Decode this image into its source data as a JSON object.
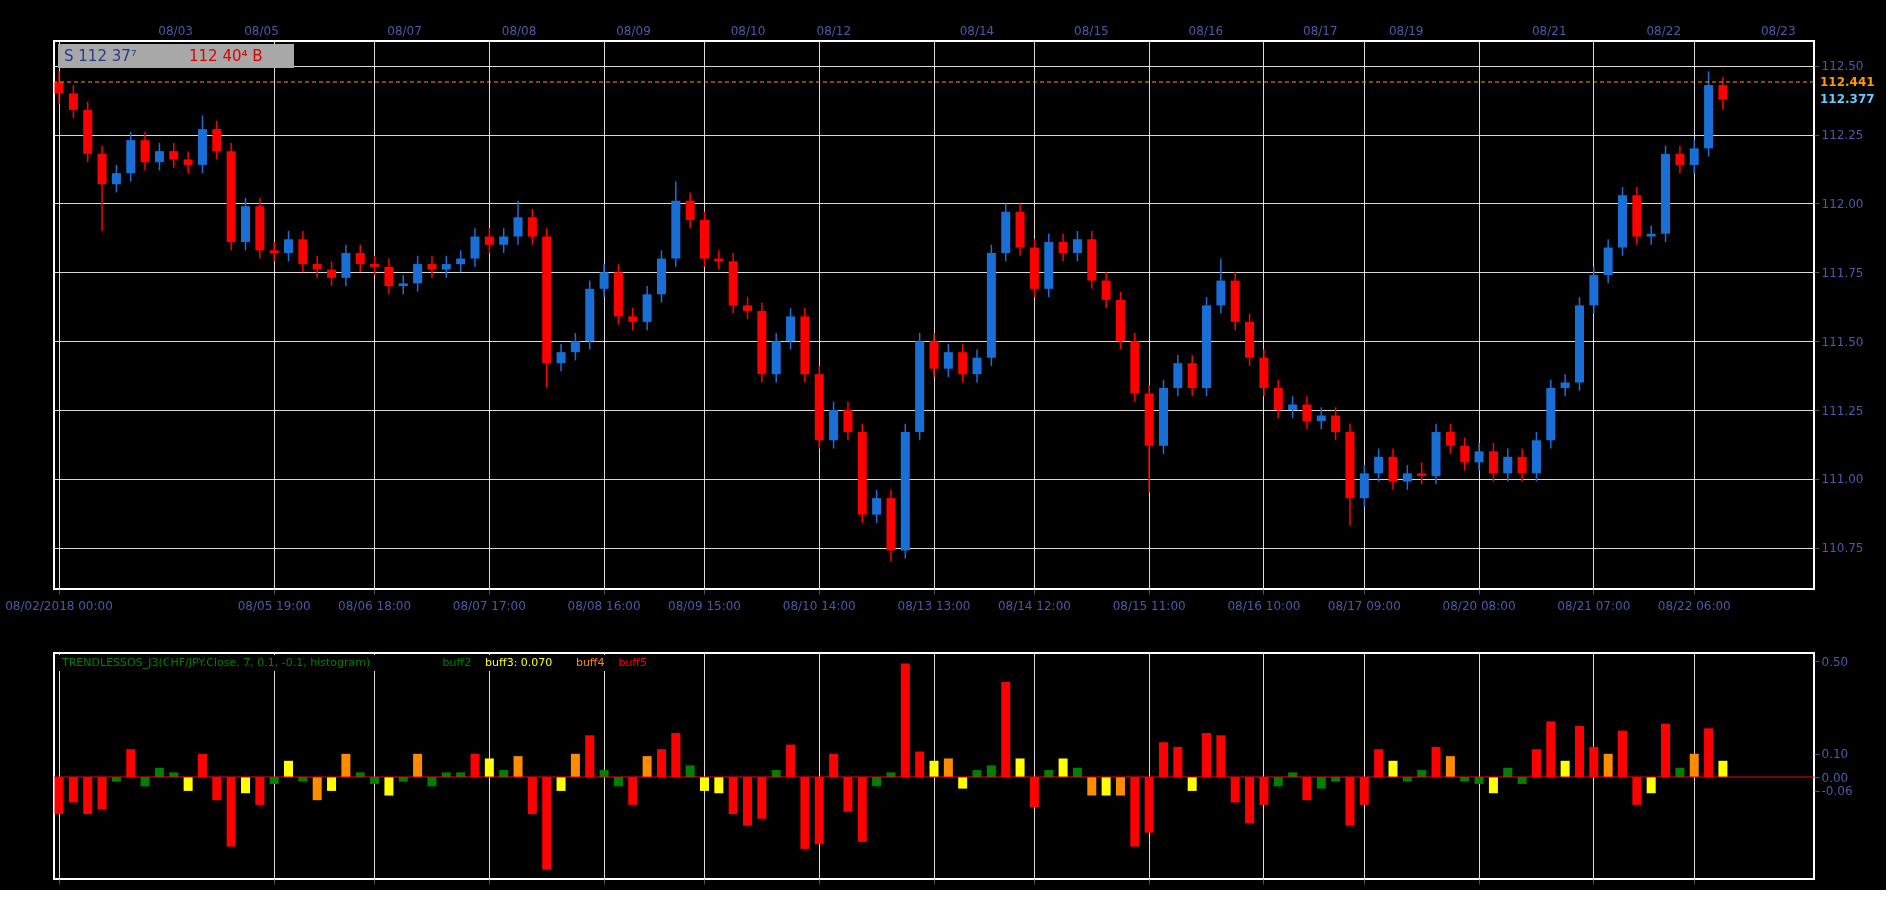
{
  "chart_data": [
    {
      "type": "candlestick",
      "categories": [
        "08/02/2018 00:00",
        null,
        null,
        null,
        null,
        null,
        null,
        null,
        null,
        null,
        null,
        null,
        null,
        null,
        null,
        "08/05 19:00",
        null,
        null,
        null,
        null,
        null,
        null,
        "08/06 18:00",
        null,
        null,
        null,
        null,
        null,
        null,
        null,
        "08/07 17:00",
        null,
        null,
        null,
        null,
        null,
        null,
        null,
        "08/08 16:00",
        null,
        null,
        null,
        null,
        null,
        null,
        "08/09 15:00",
        null,
        null,
        null,
        null,
        null,
        null,
        null,
        "08/10 14:00",
        null,
        null,
        null,
        null,
        null,
        null,
        null,
        "08/13 13:00",
        null,
        null,
        null,
        null,
        null,
        null,
        "08/14 12:00",
        null,
        null,
        null,
        null,
        null,
        null,
        null,
        "08/15 11:00",
        null,
        null,
        null,
        null,
        null,
        null,
        null,
        "08/16 10:00",
        null,
        null,
        null,
        null,
        null,
        null,
        "08/17 09:00",
        null,
        null,
        null,
        null,
        null,
        null,
        null,
        "08/20 08:00",
        null,
        null,
        null,
        null,
        null,
        null,
        null,
        "08/21 07:00",
        null,
        null,
        null,
        null,
        null,
        null,
        "08/22 06:00",
        null,
        null,
        null,
        null,
        null,
        null,
        null,
        null
      ],
      "ohlc": [
        [
          112.44,
          112.48,
          112.36,
          112.4
        ],
        [
          112.4,
          112.43,
          112.31,
          112.34
        ],
        [
          112.34,
          112.37,
          112.15,
          112.18
        ],
        [
          112.18,
          112.21,
          111.9,
          112.07
        ],
        [
          112.07,
          112.14,
          112.04,
          112.11
        ],
        [
          112.11,
          112.26,
          112.08,
          112.23
        ],
        [
          112.23,
          112.26,
          112.12,
          112.15
        ],
        [
          112.15,
          112.22,
          112.12,
          112.19
        ],
        [
          112.19,
          112.22,
          112.13,
          112.16
        ],
        [
          112.16,
          112.19,
          112.11,
          112.14
        ],
        [
          112.14,
          112.32,
          112.11,
          112.27
        ],
        [
          112.27,
          112.3,
          112.16,
          112.19
        ],
        [
          112.19,
          112.22,
          111.83,
          111.86
        ],
        [
          111.86,
          112.02,
          111.83,
          111.99
        ],
        [
          111.99,
          112.02,
          111.8,
          111.83
        ],
        [
          111.83,
          111.86,
          111.79,
          111.82
        ],
        [
          111.82,
          111.9,
          111.79,
          111.87
        ],
        [
          111.87,
          111.9,
          111.75,
          111.78
        ],
        [
          111.78,
          111.81,
          111.73,
          111.76
        ],
        [
          111.76,
          111.79,
          111.7,
          111.73
        ],
        [
          111.73,
          111.85,
          111.7,
          111.82
        ],
        [
          111.82,
          111.85,
          111.75,
          111.78
        ],
        [
          111.78,
          111.81,
          111.74,
          111.77
        ],
        [
          111.77,
          111.8,
          111.67,
          111.7
        ],
        [
          111.7,
          111.74,
          111.67,
          111.71
        ],
        [
          111.71,
          111.81,
          111.68,
          111.78
        ],
        [
          111.78,
          111.81,
          111.73,
          111.76
        ],
        [
          111.76,
          111.81,
          111.73,
          111.78
        ],
        [
          111.78,
          111.83,
          111.75,
          111.8
        ],
        [
          111.8,
          111.91,
          111.77,
          111.88
        ],
        [
          111.88,
          111.91,
          111.82,
          111.85
        ],
        [
          111.85,
          111.91,
          111.82,
          111.88
        ],
        [
          111.88,
          112.01,
          111.85,
          111.95
        ],
        [
          111.95,
          111.98,
          111.85,
          111.88
        ],
        [
          111.88,
          111.91,
          111.33,
          111.42
        ],
        [
          111.42,
          111.49,
          111.39,
          111.46
        ],
        [
          111.46,
          111.53,
          111.43,
          111.5
        ],
        [
          111.5,
          111.72,
          111.47,
          111.69
        ],
        [
          111.69,
          111.78,
          111.66,
          111.75
        ],
        [
          111.75,
          111.78,
          111.56,
          111.59
        ],
        [
          111.59,
          111.62,
          111.54,
          111.57
        ],
        [
          111.57,
          111.7,
          111.54,
          111.67
        ],
        [
          111.67,
          111.83,
          111.64,
          111.8
        ],
        [
          111.8,
          112.08,
          111.77,
          112.01
        ],
        [
          112.01,
          112.04,
          111.91,
          111.94
        ],
        [
          111.94,
          111.97,
          111.77,
          111.8
        ],
        [
          111.8,
          111.83,
          111.76,
          111.79
        ],
        [
          111.79,
          111.82,
          111.6,
          111.63
        ],
        [
          111.63,
          111.66,
          111.58,
          111.61
        ],
        [
          111.61,
          111.64,
          111.35,
          111.38
        ],
        [
          111.38,
          111.53,
          111.35,
          111.5
        ],
        [
          111.5,
          111.62,
          111.47,
          111.59
        ],
        [
          111.59,
          111.62,
          111.35,
          111.38
        ],
        [
          111.38,
          111.41,
          111.11,
          111.14
        ],
        [
          111.14,
          111.28,
          111.11,
          111.25
        ],
        [
          111.25,
          111.28,
          111.14,
          111.17
        ],
        [
          111.17,
          111.2,
          110.84,
          110.87
        ],
        [
          110.87,
          110.96,
          110.84,
          110.93
        ],
        [
          110.93,
          110.96,
          110.7,
          110.74
        ],
        [
          110.74,
          111.2,
          110.71,
          111.17
        ],
        [
          111.17,
          111.53,
          111.14,
          111.5
        ],
        [
          111.5,
          111.53,
          111.37,
          111.4
        ],
        [
          111.4,
          111.49,
          111.37,
          111.46
        ],
        [
          111.46,
          111.49,
          111.35,
          111.38
        ],
        [
          111.38,
          111.47,
          111.35,
          111.44
        ],
        [
          111.44,
          111.85,
          111.41,
          111.82
        ],
        [
          111.82,
          112.0,
          111.79,
          111.97
        ],
        [
          111.97,
          112.0,
          111.81,
          111.84
        ],
        [
          111.84,
          111.87,
          111.66,
          111.69
        ],
        [
          111.69,
          111.89,
          111.66,
          111.86
        ],
        [
          111.86,
          111.89,
          111.79,
          111.82
        ],
        [
          111.82,
          111.9,
          111.79,
          111.87
        ],
        [
          111.87,
          111.9,
          111.69,
          111.72
        ],
        [
          111.72,
          111.75,
          111.62,
          111.65
        ],
        [
          111.65,
          111.68,
          111.47,
          111.5
        ],
        [
          111.5,
          111.53,
          111.28,
          111.31
        ],
        [
          111.31,
          111.34,
          110.95,
          111.12
        ],
        [
          111.12,
          111.36,
          111.09,
          111.33
        ],
        [
          111.33,
          111.45,
          111.3,
          111.42
        ],
        [
          111.42,
          111.45,
          111.3,
          111.33
        ],
        [
          111.33,
          111.66,
          111.3,
          111.63
        ],
        [
          111.63,
          111.8,
          111.6,
          111.72
        ],
        [
          111.72,
          111.75,
          111.54,
          111.57
        ],
        [
          111.57,
          111.6,
          111.41,
          111.44
        ],
        [
          111.44,
          111.47,
          111.3,
          111.33
        ],
        [
          111.33,
          111.36,
          111.22,
          111.25
        ],
        [
          111.25,
          111.3,
          111.22,
          111.27
        ],
        [
          111.27,
          111.3,
          111.18,
          111.21
        ],
        [
          111.21,
          111.26,
          111.18,
          111.23
        ],
        [
          111.23,
          111.26,
          111.14,
          111.17
        ],
        [
          111.17,
          111.2,
          110.83,
          110.93
        ],
        [
          110.93,
          111.05,
          110.9,
          111.02
        ],
        [
          111.02,
          111.11,
          110.99,
          111.08
        ],
        [
          111.08,
          111.11,
          110.96,
          110.99
        ],
        [
          110.99,
          111.05,
          110.96,
          111.02
        ],
        [
          111.02,
          111.06,
          110.98,
          111.01
        ],
        [
          111.01,
          111.2,
          110.98,
          111.17
        ],
        [
          111.17,
          111.2,
          111.09,
          111.12
        ],
        [
          111.12,
          111.15,
          111.03,
          111.06
        ],
        [
          111.06,
          111.13,
          111.03,
          111.1
        ],
        [
          111.1,
          111.13,
          110.99,
          111.02
        ],
        [
          111.02,
          111.11,
          110.99,
          111.08
        ],
        [
          111.08,
          111.11,
          110.99,
          111.02
        ],
        [
          111.02,
          111.17,
          110.99,
          111.14
        ],
        [
          111.14,
          111.36,
          111.11,
          111.33
        ],
        [
          111.33,
          111.38,
          111.3,
          111.35
        ],
        [
          111.35,
          111.66,
          111.32,
          111.63
        ],
        [
          111.63,
          111.77,
          111.6,
          111.74
        ],
        [
          111.74,
          111.87,
          111.71,
          111.84
        ],
        [
          111.84,
          112.06,
          111.81,
          112.03
        ],
        [
          112.03,
          112.06,
          111.85,
          111.88
        ],
        [
          111.88,
          111.92,
          111.85,
          111.89
        ],
        [
          111.89,
          112.21,
          111.86,
          112.18
        ],
        [
          112.18,
          112.21,
          112.11,
          112.14
        ],
        [
          112.14,
          112.23,
          112.11,
          112.2
        ],
        [
          112.2,
          112.48,
          112.17,
          112.43
        ],
        [
          112.43,
          112.46,
          112.34,
          112.377
        ],
        null,
        null,
        null,
        null,
        null,
        null
      ],
      "colors": [
        "#ff0000",
        "#ff0000",
        "#ff0000",
        "#ff0000",
        "#1a6fd6",
        "#1a6fd6",
        "#ff0000",
        "#1a6fd6",
        "#ff0000",
        "#ff0000",
        "#1a6fd6",
        "#ff0000",
        "#ff0000",
        "#1a6fd6",
        "#ff0000",
        "#ff0000",
        "#1a6fd6",
        "#ff0000",
        "#ff0000",
        "#ff0000",
        "#1a6fd6",
        "#ff0000",
        "#ff0000",
        "#ff0000",
        "#1a6fd6",
        "#1a6fd6",
        "#ff0000",
        "#1a6fd6",
        "#1a6fd6",
        "#1a6fd6",
        "#ff0000",
        "#1a6fd6",
        "#1a6fd6",
        "#ff0000",
        "#ff0000",
        "#1a6fd6",
        "#1a6fd6",
        "#1a6fd6",
        "#1a6fd6",
        "#ff0000",
        "#ff0000",
        "#1a6fd6",
        "#1a6fd6",
        "#1a6fd6",
        "#ff0000",
        "#ff0000",
        "#ff0000",
        "#ff0000",
        "#ff0000",
        "#ff0000",
        "#1a6fd6",
        "#1a6fd6",
        "#ff0000",
        "#ff0000",
        "#1a6fd6",
        "#ff0000",
        "#ff0000",
        "#1a6fd6",
        "#ff0000",
        "#1a6fd6",
        "#1a6fd6",
        "#ff0000",
        "#1a6fd6",
        "#ff0000",
        "#1a6fd6",
        "#1a6fd6",
        "#1a6fd6",
        "#ff0000",
        "#ff0000",
        "#1a6fd6",
        "#ff0000",
        "#1a6fd6",
        "#ff0000",
        "#ff0000",
        "#ff0000",
        "#ff0000",
        "#ff0000",
        "#1a6fd6",
        "#1a6fd6",
        "#ff0000",
        "#1a6fd6",
        "#1a6fd6",
        "#ff0000",
        "#ff0000",
        "#ff0000",
        "#ff0000",
        "#1a6fd6",
        "#ff0000",
        "#1a6fd6",
        "#ff0000",
        "#ff0000",
        "#1a6fd6",
        "#1a6fd6",
        "#ff0000",
        "#1a6fd6",
        "#ff0000",
        "#1a6fd6",
        "#ff0000",
        "#ff0000",
        "#1a6fd6",
        "#ff0000",
        "#1a6fd6",
        "#ff0000",
        "#1a6fd6",
        "#1a6fd6",
        "#1a6fd6",
        "#1a6fd6",
        "#1a6fd6",
        "#1a6fd6",
        "#1a6fd6",
        "#ff0000",
        "#1a6fd6",
        "#1a6fd6",
        "#ff0000",
        "#1a6fd6",
        "#1a6fd6",
        "#ff0000",
        null,
        null,
        null,
        null,
        null,
        null
      ],
      "ylim": [
        110.6,
        112.59
      ],
      "yticks": [
        {
          "value": 112.5,
          "label": "112.50"
        },
        {
          "value": 112.25,
          "label": "112.25"
        },
        {
          "value": 112,
          "label": "112.00"
        },
        {
          "value": 111.75,
          "label": "111.75"
        },
        {
          "value": 111.5,
          "label": "111.50"
        },
        {
          "value": 111.25,
          "label": "111.25"
        },
        {
          "value": 111,
          "label": "111.00"
        },
        {
          "value": 110.75,
          "label": "110.75"
        }
      ],
      "grid": true,
      "ref_lines": [
        {
          "axis": "y",
          "value": 112.441,
          "label": "112.441",
          "color": "#ff9900",
          "line_style": "dashed"
        }
      ],
      "annotations": [
        "S 112 37⁷",
        "112 40⁴ B",
        "112.377",
        "08/03",
        "08/05",
        "08/07",
        "08/08",
        "08/09",
        "08/10",
        "08/12",
        "08/14",
        "08/15",
        "08/16",
        "08/17",
        "08/19",
        "08/21",
        "08/22",
        "08/23"
      ]
    },
    {
      "type": "bar",
      "title": "TRENDLESSOS_J3(CHF/JPY.Close, 7, 0.1, -0.1, histogram)",
      "categories": [
        null,
        null,
        null,
        null,
        null,
        null,
        null,
        null,
        null,
        null,
        null,
        null,
        null,
        null,
        null,
        null,
        null,
        null,
        null,
        null,
        null,
        null,
        null,
        null,
        null,
        null,
        null,
        null,
        null,
        null,
        null,
        null,
        null,
        null,
        null,
        null,
        null,
        null,
        null,
        null,
        null,
        null,
        null,
        null,
        null,
        null,
        null,
        null,
        null,
        null,
        null,
        null,
        null,
        null,
        null,
        null,
        null,
        null,
        null,
        null,
        null,
        null,
        null,
        null,
        null,
        null,
        null,
        null,
        null,
        null,
        null,
        null,
        null,
        null,
        null,
        null,
        null,
        null,
        null,
        null,
        null,
        null,
        null,
        null,
        null,
        null,
        null,
        null,
        null,
        null,
        null,
        null,
        null,
        null,
        null,
        null,
        null,
        null,
        null,
        null,
        null,
        null,
        null,
        null,
        null,
        null,
        null,
        null,
        null,
        null,
        null,
        null,
        null,
        null,
        null,
        null,
        null,
        null,
        null,
        null,
        null,
        null,
        null
      ],
      "series": [
        {
          "name": "buff2",
          "color": "#008000",
          "values": [
            null,
            null,
            null,
            null,
            -0.02,
            null,
            -0.04,
            0.04,
            0.02,
            null,
            null,
            null,
            null,
            null,
            null,
            -0.03,
            null,
            -0.02,
            null,
            null,
            null,
            0.02,
            -0.03,
            null,
            -0.02,
            null,
            -0.04,
            0.02,
            0.02,
            null,
            null,
            0.03,
            null,
            null,
            null,
            null,
            null,
            null,
            0.03,
            -0.04,
            null,
            null,
            null,
            null,
            0.05,
            null,
            null,
            null,
            null,
            null,
            0.03,
            null,
            null,
            null,
            null,
            null,
            null,
            -0.04,
            0.02,
            null,
            null,
            null,
            null,
            null,
            0.03,
            0.05,
            null,
            null,
            null,
            0.03,
            null,
            0.04,
            null,
            null,
            null,
            null,
            null,
            null,
            null,
            null,
            null,
            null,
            null,
            null,
            null,
            -0.04,
            0.02,
            null,
            -0.05,
            -0.02,
            null,
            null,
            null,
            null,
            -0.02,
            0.03,
            null,
            null,
            -0.02,
            -0.03,
            null,
            0.04,
            -0.03,
            null,
            null,
            null,
            null,
            null,
            null,
            null,
            null,
            null,
            null,
            0.04,
            null,
            null,
            null,
            null,
            null,
            null,
            null,
            null,
            null
          ]
        },
        {
          "name": "buff3: 0.070",
          "color": "#ffff00",
          "values": [
            null,
            null,
            null,
            null,
            null,
            null,
            null,
            null,
            null,
            -0.06,
            null,
            null,
            null,
            -0.07,
            null,
            null,
            0.07,
            null,
            null,
            -0.06,
            null,
            null,
            null,
            -0.08,
            null,
            null,
            null,
            null,
            null,
            null,
            0.08,
            null,
            null,
            null,
            null,
            -0.06,
            null,
            null,
            null,
            null,
            null,
            null,
            null,
            null,
            null,
            -0.06,
            -0.07,
            null,
            null,
            null,
            null,
            null,
            null,
            null,
            null,
            null,
            null,
            null,
            null,
            null,
            null,
            0.07,
            null,
            -0.05,
            null,
            null,
            null,
            0.08,
            null,
            null,
            0.08,
            null,
            null,
            -0.08,
            null,
            null,
            null,
            null,
            null,
            -0.06,
            null,
            null,
            null,
            null,
            null,
            null,
            null,
            null,
            null,
            null,
            null,
            null,
            null,
            0.07,
            null,
            null,
            null,
            null,
            null,
            null,
            -0.07,
            null,
            null,
            null,
            null,
            0.07,
            null,
            null,
            null,
            null,
            null,
            -0.07,
            null,
            null,
            null,
            null,
            0.07,
            null,
            null,
            null,
            null,
            null,
            null
          ]
        },
        {
          "name": "buff4",
          "color": "#ff8c00",
          "values": [
            null,
            null,
            null,
            null,
            null,
            null,
            null,
            null,
            null,
            null,
            null,
            null,
            null,
            null,
            null,
            null,
            null,
            null,
            -0.1,
            null,
            0.1,
            null,
            null,
            null,
            null,
            0.1,
            null,
            null,
            null,
            null,
            null,
            null,
            0.09,
            null,
            null,
            null,
            0.1,
            null,
            null,
            null,
            null,
            0.09,
            null,
            null,
            null,
            null,
            null,
            null,
            null,
            null,
            null,
            null,
            null,
            null,
            null,
            null,
            null,
            null,
            null,
            null,
            null,
            null,
            0.08,
            null,
            null,
            null,
            null,
            null,
            null,
            null,
            null,
            null,
            -0.08,
            null,
            -0.08,
            null,
            null,
            null,
            null,
            null,
            null,
            null,
            null,
            null,
            null,
            null,
            null,
            null,
            null,
            null,
            null,
            null,
            null,
            null,
            null,
            null,
            null,
            0.09,
            null,
            null,
            null,
            null,
            null,
            null,
            null,
            null,
            null,
            null,
            0.1,
            null,
            null,
            null,
            null,
            null,
            0.1,
            null,
            null,
            null,
            null,
            null,
            null,
            null,
            null
          ]
        },
        {
          "name": "buff5",
          "color": "#ff0000",
          "values": [
            -0.16,
            -0.11,
            -0.16,
            -0.14,
            null,
            0.12,
            null,
            null,
            null,
            null,
            0.1,
            -0.1,
            -0.3,
            null,
            -0.12,
            null,
            null,
            null,
            null,
            null,
            null,
            null,
            null,
            null,
            null,
            null,
            null,
            null,
            null,
            0.1,
            null,
            null,
            null,
            -0.16,
            -0.4,
            null,
            null,
            0.18,
            null,
            null,
            -0.12,
            null,
            0.12,
            0.19,
            null,
            null,
            null,
            -0.16,
            -0.21,
            -0.18,
            null,
            0.14,
            -0.31,
            -0.29,
            0.1,
            -0.15,
            -0.28,
            null,
            null,
            0.49,
            0.11,
            null,
            null,
            null,
            null,
            null,
            0.41,
            null,
            -0.13,
            null,
            null,
            null,
            null,
            null,
            null,
            -0.3,
            -0.24,
            0.15,
            0.13,
            null,
            0.19,
            0.18,
            -0.11,
            -0.2,
            -0.12,
            null,
            null,
            -0.1,
            null,
            null,
            -0.21,
            -0.12,
            0.12,
            null,
            null,
            null,
            0.13,
            null,
            null,
            null,
            null,
            null,
            null,
            0.12,
            0.24,
            null,
            0.22,
            0.13,
            null,
            0.2,
            -0.12,
            null,
            0.23,
            null,
            null,
            0.21,
            null,
            null,
            null,
            null,
            null,
            null,
            null
          ]
        }
      ],
      "ylim": [
        -0.44,
        0.535
      ],
      "yticks": [
        {
          "value": 0.5,
          "label": "0.50"
        },
        {
          "value": 0.1,
          "label": "0.10"
        },
        {
          "value": 0,
          "label": "0.00"
        },
        {
          "value": -0.06,
          "label": "-0.06"
        }
      ],
      "grid": "x",
      "tick_labels": "y",
      "legend": "top left",
      "ref_lines": [
        {
          "axis": "y",
          "value": 0,
          "color": "#ff0000",
          "line_style": "solid"
        }
      ]
    }
  ]
}
